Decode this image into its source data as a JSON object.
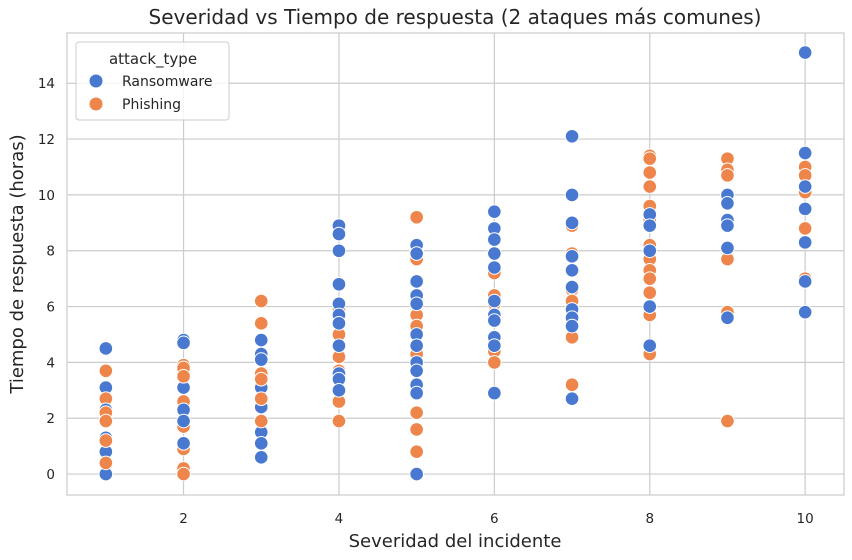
{
  "chart_data": {
    "type": "scatter",
    "title": "Severidad vs Tiempo de respuesta (2 ataques más comunes)",
    "xlabel": "Severidad del incidente",
    "ylabel": "Tiempo de respuesta (horas)",
    "xlim": [
      0.5,
      10.5
    ],
    "ylim": [
      -0.75,
      15.8
    ],
    "xticks": [
      2,
      4,
      6,
      8,
      10
    ],
    "yticks": [
      0,
      2,
      4,
      6,
      8,
      10,
      12,
      14
    ],
    "grid": true,
    "legend": {
      "title": "attack_type",
      "placement": "top-left"
    },
    "series": [
      {
        "name": "Ransomware",
        "color": "#4878d0",
        "points": [
          [
            1,
            4.5
          ],
          [
            1,
            3.1
          ],
          [
            1,
            2.3
          ],
          [
            1,
            1.3
          ],
          [
            1,
            0.8
          ],
          [
            1,
            0.0
          ],
          [
            2,
            4.8
          ],
          [
            2,
            4.7
          ],
          [
            2,
            3.1
          ],
          [
            2,
            2.6
          ],
          [
            2,
            2.3
          ],
          [
            2,
            1.9
          ],
          [
            2,
            1.1
          ],
          [
            3,
            4.8
          ],
          [
            3,
            4.3
          ],
          [
            3,
            4.1
          ],
          [
            3,
            3.1
          ],
          [
            3,
            2.4
          ],
          [
            3,
            1.5
          ],
          [
            3,
            1.1
          ],
          [
            3,
            0.6
          ],
          [
            4,
            8.9
          ],
          [
            4,
            8.6
          ],
          [
            4,
            8.0
          ],
          [
            4,
            6.8
          ],
          [
            4,
            6.1
          ],
          [
            4,
            5.7
          ],
          [
            4,
            5.4
          ],
          [
            4,
            4.6
          ],
          [
            4,
            3.6
          ],
          [
            4,
            3.4
          ],
          [
            4,
            3.0
          ],
          [
            5,
            8.2
          ],
          [
            5,
            7.9
          ],
          [
            5,
            6.9
          ],
          [
            5,
            6.4
          ],
          [
            5,
            6.1
          ],
          [
            5,
            5.0
          ],
          [
            5,
            4.6
          ],
          [
            5,
            4.0
          ],
          [
            5,
            3.7
          ],
          [
            5,
            3.2
          ],
          [
            5,
            2.9
          ],
          [
            5,
            0.0
          ],
          [
            6,
            9.4
          ],
          [
            6,
            8.8
          ],
          [
            6,
            8.4
          ],
          [
            6,
            7.9
          ],
          [
            6,
            7.4
          ],
          [
            6,
            6.2
          ],
          [
            6,
            5.7
          ],
          [
            6,
            5.5
          ],
          [
            6,
            4.9
          ],
          [
            6,
            4.6
          ],
          [
            6,
            2.9
          ],
          [
            7,
            12.1
          ],
          [
            7,
            10.0
          ],
          [
            7,
            9.0
          ],
          [
            7,
            7.8
          ],
          [
            7,
            7.3
          ],
          [
            7,
            6.7
          ],
          [
            7,
            5.9
          ],
          [
            7,
            5.6
          ],
          [
            7,
            5.3
          ],
          [
            7,
            2.7
          ],
          [
            8,
            9.3
          ],
          [
            8,
            8.9
          ],
          [
            8,
            8.0
          ],
          [
            8,
            6.0
          ],
          [
            8,
            4.6
          ],
          [
            9,
            10.0
          ],
          [
            9,
            9.7
          ],
          [
            9,
            9.1
          ],
          [
            9,
            8.9
          ],
          [
            9,
            8.1
          ],
          [
            9,
            5.6
          ],
          [
            10,
            15.1
          ],
          [
            10,
            11.5
          ],
          [
            10,
            10.3
          ],
          [
            10,
            9.5
          ],
          [
            10,
            8.3
          ],
          [
            10,
            6.9
          ],
          [
            10,
            5.8
          ]
        ]
      },
      {
        "name": "Phishing",
        "color": "#ee854a",
        "points": [
          [
            1,
            3.7
          ],
          [
            1,
            2.7
          ],
          [
            1,
            2.2
          ],
          [
            1,
            1.9
          ],
          [
            1,
            1.2
          ],
          [
            1,
            0.4
          ],
          [
            2,
            3.9
          ],
          [
            2,
            3.8
          ],
          [
            2,
            3.5
          ],
          [
            2,
            2.6
          ],
          [
            2,
            1.7
          ],
          [
            2,
            0.9
          ],
          [
            2,
            0.2
          ],
          [
            2,
            0.0
          ],
          [
            3,
            6.2
          ],
          [
            3,
            5.4
          ],
          [
            3,
            3.6
          ],
          [
            3,
            3.4
          ],
          [
            3,
            2.7
          ],
          [
            3,
            1.9
          ],
          [
            4,
            5.9
          ],
          [
            4,
            5.6
          ],
          [
            4,
            5.0
          ],
          [
            4,
            4.2
          ],
          [
            4,
            3.7
          ],
          [
            4,
            2.6
          ],
          [
            4,
            1.9
          ],
          [
            5,
            9.2
          ],
          [
            5,
            8.0
          ],
          [
            5,
            7.7
          ],
          [
            5,
            5.7
          ],
          [
            5,
            5.3
          ],
          [
            5,
            4.6
          ],
          [
            5,
            4.3
          ],
          [
            5,
            3.0
          ],
          [
            5,
            2.2
          ],
          [
            5,
            1.6
          ],
          [
            5,
            0.8
          ],
          [
            6,
            7.2
          ],
          [
            6,
            6.4
          ],
          [
            6,
            6.1
          ],
          [
            6,
            4.4
          ],
          [
            6,
            4.0
          ],
          [
            7,
            8.9
          ],
          [
            7,
            7.9
          ],
          [
            7,
            6.6
          ],
          [
            7,
            6.2
          ],
          [
            7,
            4.9
          ],
          [
            7,
            3.2
          ],
          [
            8,
            11.4
          ],
          [
            8,
            11.3
          ],
          [
            8,
            10.8
          ],
          [
            8,
            10.3
          ],
          [
            8,
            9.6
          ],
          [
            8,
            9.1
          ],
          [
            8,
            8.9
          ],
          [
            8,
            8.2
          ],
          [
            8,
            7.7
          ],
          [
            8,
            7.3
          ],
          [
            8,
            7.0
          ],
          [
            8,
            6.5
          ],
          [
            8,
            5.7
          ],
          [
            8,
            4.3
          ],
          [
            9,
            11.3
          ],
          [
            9,
            10.9
          ],
          [
            9,
            10.7
          ],
          [
            9,
            7.7
          ],
          [
            9,
            5.8
          ],
          [
            9,
            1.9
          ],
          [
            10,
            11.0
          ],
          [
            10,
            10.7
          ],
          [
            10,
            10.1
          ],
          [
            10,
            8.8
          ],
          [
            10,
            7.0
          ]
        ]
      }
    ]
  }
}
